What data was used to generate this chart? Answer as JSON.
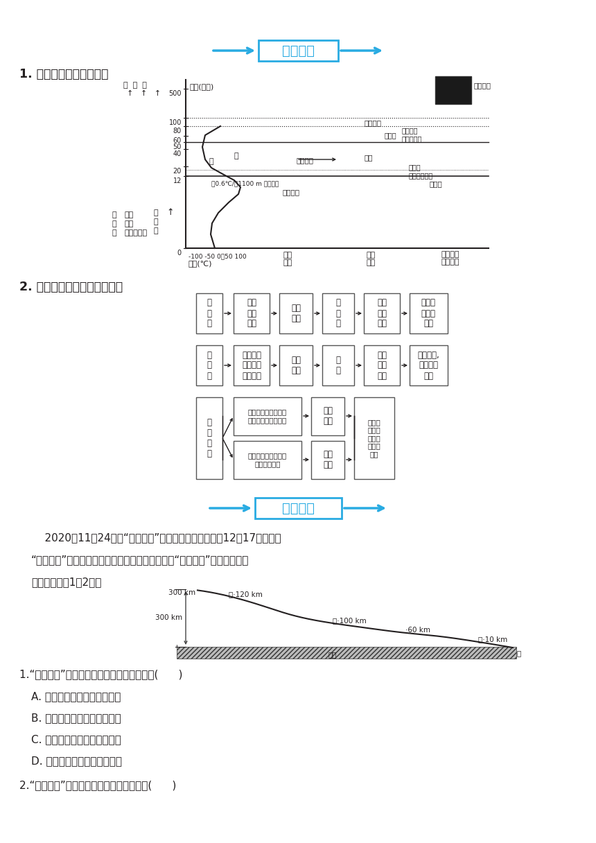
{
  "title_banner": "深化整合",
  "section1_title": "1. 大气垂直分层及其特点",
  "section2_title": "2. 各层大气的热量来源及特点",
  "section3_banner": "对点训练",
  "paragraph1": "    2020年11月24日，“幦娥五号”探测器成功发射升空。12月17日凌晨，",
  "paragraph2": "“幦娥五号”携带月壤返回地球并安全着陆。下图为“幦娥五号”返回路线示意",
  "paragraph3": "图。据此完戝1～2题。",
  "question1": "1.“幦娥五号”升空过程中依次经过的大气层是(      )",
  "q1_optionA": "A. 对流层、平流层、高层大气",
  "q1_optionB": "B. 高层大气、平流层、对流层",
  "q1_optionC": "C. 平流层、对流层、高层大气",
  "q1_optionD": "D. 对流层、高层大气、平流层",
  "question2": "2.“幦娥五号”返回途中，可能发生的现象是(      )",
  "bg_color": "#ffffff",
  "banner_color": "#29abe2",
  "text_color": "#231f20"
}
